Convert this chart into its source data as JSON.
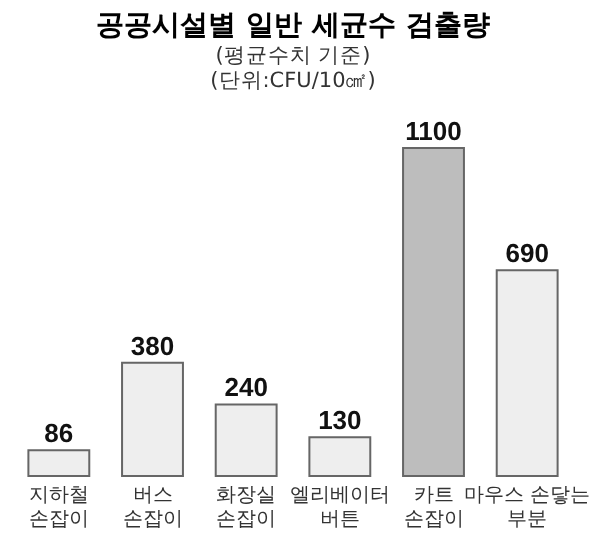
{
  "chart_data": {
    "type": "bar",
    "title": "공공시설별 일반 세균수 검출량",
    "subtitle": "(평균수치 기준)",
    "annotations": [
      "(단위:CFU/10㎠)"
    ],
    "categories": [
      "지하철\n손잡이",
      "버스\n손잡이",
      "화장실\n손잡이",
      "엘리베이터\n버튼",
      "카트\n손잡이",
      "마우스 손닿는\n부분"
    ],
    "values": [
      86,
      380,
      240,
      130,
      1100,
      690
    ],
    "colors": [
      "#eeeeee",
      "#eeeeee",
      "#eeeeee",
      "#eeeeee",
      "#bdbdbd",
      "#eeeeee"
    ],
    "data_labels": true,
    "grid": false
  }
}
